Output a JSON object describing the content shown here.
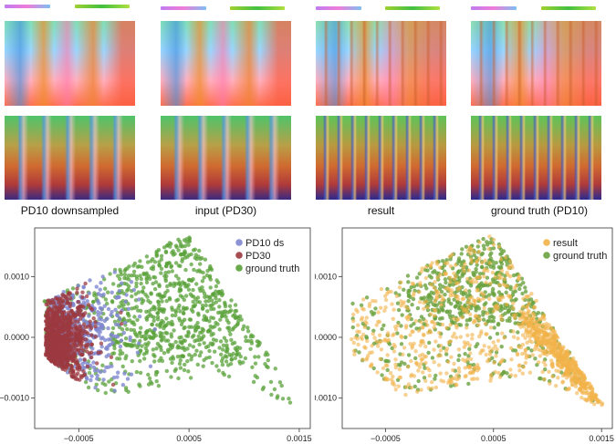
{
  "figure": {
    "captions": [
      "PD10 downsampled",
      "input (PD30)",
      "result",
      "ground truth (PD10)"
    ],
    "colors": {
      "pd10ds": "#7f87cf",
      "pd30": "#9c3a40",
      "ground_truth": "#5aa13a",
      "result": "#f2b24a",
      "gt_right": "#6aa23f"
    }
  },
  "chart_data": [
    {
      "type": "scatter",
      "xlim": [
        -0.0009,
        0.0016
      ],
      "ylim": [
        -0.0015,
        0.0018
      ],
      "xticks": [
        -0.0005,
        0.0005,
        0.0015
      ],
      "yticks": [
        0.001,
        0.0,
        -0.001
      ],
      "xtick_labels": [
        "−0.0005",
        "0.0005",
        "0.0015"
      ],
      "ytick_labels": [
        "0.0010",
        "0.0000",
        "−0.0010"
      ],
      "legend_position": "top-right",
      "series": [
        {
          "name": "PD10 ds",
          "color": "#7f87cf"
        },
        {
          "name": "PD30",
          "color": "#9c3a40"
        },
        {
          "name": "ground truth",
          "color": "#5aa13a"
        }
      ]
    },
    {
      "type": "scatter",
      "xlim": [
        -0.0009,
        0.0016
      ],
      "ylim": [
        -0.0015,
        0.0018
      ],
      "xticks": [
        -0.0005,
        0.0005,
        0.0015
      ],
      "yticks": [
        0.001,
        0.0,
        -0.001
      ],
      "xtick_labels": [
        "−0.0005",
        "0.0005",
        "0.0015"
      ],
      "ytick_labels": [
        "0.0010",
        "0.0000",
        "−0.0010"
      ],
      "legend_position": "top-right",
      "series": [
        {
          "name": "result",
          "color": "#f2b24a"
        },
        {
          "name": "ground truth",
          "color": "#6aa23f"
        }
      ]
    }
  ]
}
